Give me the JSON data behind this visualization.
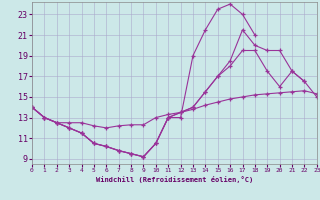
{
  "xlabel": "Windchill (Refroidissement éolien,°C)",
  "background_color": "#cce8e8",
  "grid_color": "#aaaacc",
  "line_color": "#993399",
  "xlim": [
    0,
    23
  ],
  "ylim": [
    8.5,
    24.2
  ],
  "xticks": [
    0,
    1,
    2,
    3,
    4,
    5,
    6,
    7,
    8,
    9,
    10,
    11,
    12,
    13,
    14,
    15,
    16,
    17,
    18,
    19,
    20,
    21,
    22,
    23
  ],
  "yticks": [
    9,
    11,
    13,
    15,
    17,
    19,
    21,
    23
  ],
  "series": [
    {
      "x": [
        0,
        1,
        2,
        3,
        4,
        5,
        6,
        7,
        8,
        9,
        10,
        11,
        12,
        13,
        14,
        15,
        16,
        17,
        18
      ],
      "y": [
        14,
        13,
        12.5,
        12,
        11.5,
        10.5,
        10.2,
        9.8,
        9.5,
        9.2,
        10.5,
        13.0,
        13.0,
        19.0,
        21.5,
        23.5,
        24.0,
        23.0,
        21.0
      ]
    },
    {
      "x": [
        0,
        1,
        2,
        3,
        4,
        5,
        6,
        7,
        8,
        9,
        10,
        11,
        12,
        13,
        14,
        15,
        16,
        17,
        18,
        19,
        20,
        21,
        22,
        23
      ],
      "y": [
        14,
        13,
        12.5,
        12,
        11.5,
        10.5,
        10.2,
        9.8,
        9.5,
        9.2,
        10.5,
        13.0,
        13.5,
        14.0,
        15.5,
        17.0,
        18.5,
        21.5,
        20.0,
        19.5,
        19.5,
        17.5,
        16.5,
        15.0
      ]
    },
    {
      "x": [
        0,
        1,
        2,
        3,
        4,
        5,
        6,
        7,
        8,
        9,
        10,
        11,
        12,
        13,
        14,
        15,
        16,
        17,
        18,
        19,
        20,
        21,
        22
      ],
      "y": [
        14,
        13,
        12.5,
        12,
        11.5,
        10.5,
        10.2,
        9.8,
        9.5,
        9.2,
        10.5,
        13.0,
        13.5,
        14.0,
        15.5,
        17.0,
        18.0,
        19.5,
        19.5,
        17.5,
        16.0,
        17.5,
        16.5
      ]
    },
    {
      "x": [
        0,
        1,
        2,
        3,
        4,
        5,
        6,
        7,
        8,
        9,
        10,
        11,
        12,
        13,
        14,
        15,
        16,
        17,
        18,
        19,
        20,
        21,
        22,
        23
      ],
      "y": [
        14,
        13,
        12.5,
        12.5,
        12.5,
        12.2,
        12.0,
        12.2,
        12.3,
        12.3,
        13.0,
        13.3,
        13.5,
        13.8,
        14.2,
        14.5,
        14.8,
        15.0,
        15.2,
        15.3,
        15.4,
        15.5,
        15.6,
        15.3
      ]
    }
  ]
}
